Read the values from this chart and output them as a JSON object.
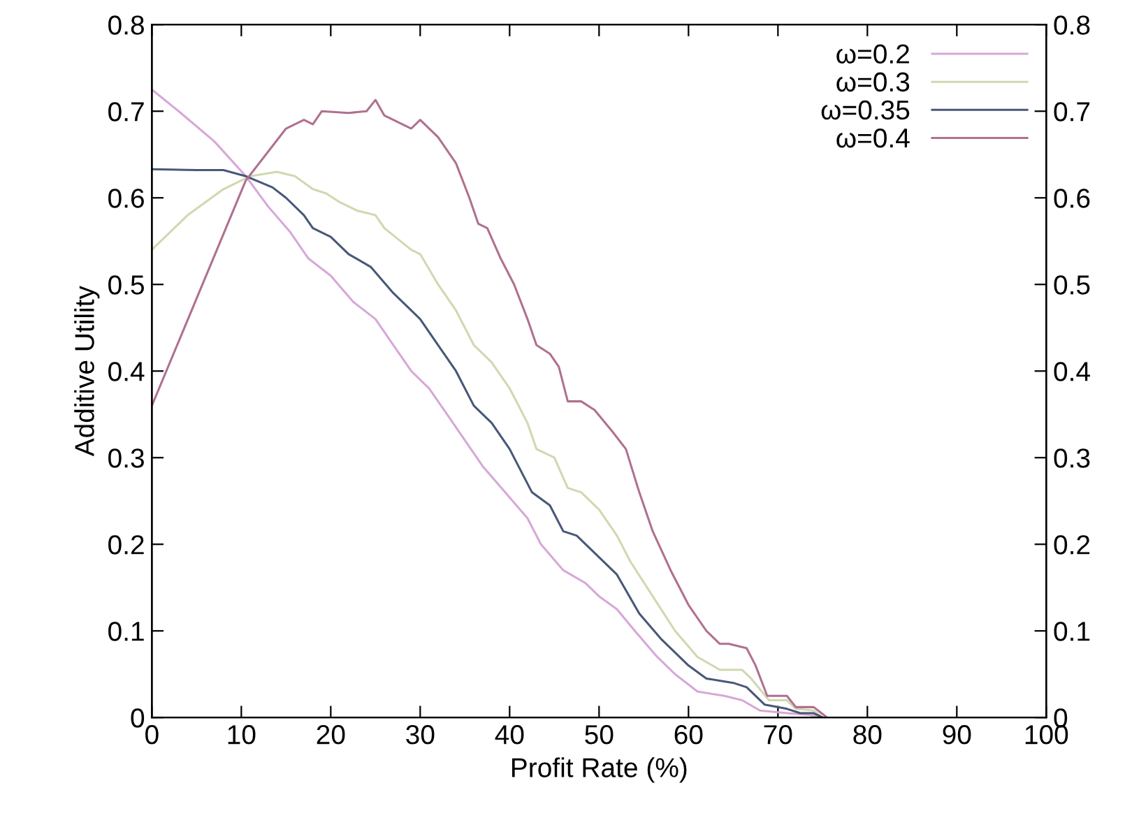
{
  "chart_data": {
    "type": "line",
    "xlabel": "Profit Rate (%)",
    "ylabel": "Additive Utility",
    "xlim": [
      0,
      100
    ],
    "xticks": [
      0,
      10,
      20,
      30,
      40,
      50,
      60,
      70,
      80,
      90,
      100
    ],
    "ylim": [
      0,
      0.8
    ],
    "yticks": [
      0,
      0.1,
      0.2,
      0.3,
      0.4,
      0.5,
      0.6,
      0.7,
      0.8
    ],
    "y2lim": [
      0,
      0.8
    ],
    "y2ticks": [
      0,
      0.1,
      0.2,
      0.3,
      0.4,
      0.5,
      0.6,
      0.7,
      0.8
    ],
    "grid": false,
    "legend": "top right",
    "marker": "none",
    "line_style": "solid",
    "series": [
      {
        "name": "ω=0.2",
        "color": "#d6a8d8",
        "x": [
          0,
          3,
          7,
          10.5,
          13,
          15.5,
          17.5,
          20,
          22.5,
          25,
          27,
          29,
          31,
          33,
          35,
          37,
          39.5,
          42,
          43.5,
          46,
          48.5,
          50,
          52,
          54,
          56.5,
          58.5,
          61,
          64,
          66,
          68,
          71,
          73.5,
          75
        ],
        "values": [
          0.725,
          0.7,
          0.665,
          0.625,
          0.59,
          0.56,
          0.53,
          0.51,
          0.48,
          0.46,
          0.43,
          0.4,
          0.38,
          0.35,
          0.32,
          0.29,
          0.26,
          0.23,
          0.2,
          0.17,
          0.155,
          0.14,
          0.125,
          0.1,
          0.07,
          0.05,
          0.03,
          0.025,
          0.02,
          0.008,
          0.005,
          0.003,
          0
        ]
      },
      {
        "name": "ω=0.3",
        "color": "#d0d8b0",
        "x": [
          0,
          4,
          8,
          11,
          14,
          16,
          18,
          19.5,
          21,
          23,
          25,
          26,
          29,
          30,
          32,
          34,
          36,
          38,
          40,
          42,
          43,
          45,
          46.5,
          48,
          50,
          52,
          53.5,
          56,
          58.5,
          61,
          63.5,
          66,
          67,
          69,
          71,
          72,
          74,
          75
        ],
        "values": [
          0.54,
          0.58,
          0.61,
          0.625,
          0.63,
          0.625,
          0.61,
          0.605,
          0.595,
          0.585,
          0.58,
          0.565,
          0.54,
          0.535,
          0.5,
          0.47,
          0.43,
          0.41,
          0.38,
          0.34,
          0.31,
          0.3,
          0.265,
          0.26,
          0.24,
          0.21,
          0.18,
          0.14,
          0.1,
          0.07,
          0.055,
          0.055,
          0.045,
          0.02,
          0.02,
          0.01,
          0.008,
          0
        ]
      },
      {
        "name": "ω=0.35",
        "color": "#485878",
        "x": [
          0,
          5,
          8,
          10.5,
          13.5,
          15,
          17,
          18,
          20,
          22,
          24.5,
          27,
          29,
          30,
          32,
          34,
          36,
          38,
          40,
          42.5,
          44.5,
          46,
          47.5,
          49.5,
          52,
          54.5,
          57,
          60,
          62,
          65,
          66.5,
          68.5,
          71,
          72.5,
          74,
          75
        ],
        "values": [
          0.633,
          0.632,
          0.632,
          0.625,
          0.612,
          0.6,
          0.58,
          0.565,
          0.555,
          0.535,
          0.52,
          0.49,
          0.47,
          0.46,
          0.43,
          0.4,
          0.36,
          0.34,
          0.31,
          0.26,
          0.245,
          0.215,
          0.21,
          0.19,
          0.165,
          0.12,
          0.09,
          0.06,
          0.045,
          0.04,
          0.035,
          0.015,
          0.01,
          0.005,
          0.005,
          0
        ]
      },
      {
        "name": "ω=0.4",
        "color": "#b07090",
        "x": [
          0,
          10.5,
          15,
          17,
          18,
          19,
          22,
          24,
          25,
          26,
          28,
          29,
          30,
          32,
          34,
          35.5,
          36.5,
          37.5,
          39,
          40.5,
          42,
          43,
          44.5,
          45.5,
          46.5,
          48,
          49.5,
          51.5,
          53,
          54.5,
          56,
          58,
          60,
          62,
          63.5,
          64.5,
          66.5,
          67.5,
          68.8,
          71,
          72,
          74,
          75.5
        ],
        "values": [
          0.36,
          0.62,
          0.68,
          0.69,
          0.685,
          0.7,
          0.698,
          0.7,
          0.713,
          0.695,
          0.685,
          0.68,
          0.69,
          0.67,
          0.64,
          0.6,
          0.57,
          0.565,
          0.53,
          0.5,
          0.46,
          0.43,
          0.42,
          0.405,
          0.365,
          0.365,
          0.355,
          0.33,
          0.31,
          0.26,
          0.215,
          0.17,
          0.13,
          0.1,
          0.085,
          0.085,
          0.08,
          0.06,
          0.025,
          0.025,
          0.012,
          0.012,
          0
        ]
      }
    ]
  }
}
